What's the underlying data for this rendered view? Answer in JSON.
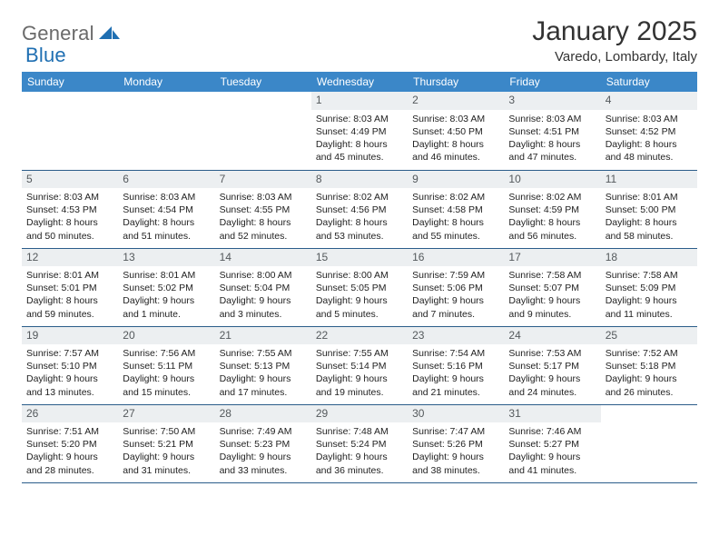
{
  "logo": {
    "primary": "General",
    "secondary": "Blue"
  },
  "colors": {
    "header_bg": "#3b87c8",
    "header_text": "#ffffff",
    "daynum_bg": "#eceff1",
    "daynum_text": "#54595c",
    "row_divider": "#2b5d8a",
    "brand_blue": "#1f6fb2",
    "brand_gray": "#6a6a6a"
  },
  "title": "January 2025",
  "subtitle": "Varedo, Lombardy, Italy",
  "weekdays": [
    "Sunday",
    "Monday",
    "Tuesday",
    "Wednesday",
    "Thursday",
    "Friday",
    "Saturday"
  ],
  "weeks": [
    [
      null,
      null,
      null,
      {
        "n": "1",
        "sr": "Sunrise: 8:03 AM",
        "ss": "Sunset: 4:49 PM",
        "d1": "Daylight: 8 hours",
        "d2": "and 45 minutes."
      },
      {
        "n": "2",
        "sr": "Sunrise: 8:03 AM",
        "ss": "Sunset: 4:50 PM",
        "d1": "Daylight: 8 hours",
        "d2": "and 46 minutes."
      },
      {
        "n": "3",
        "sr": "Sunrise: 8:03 AM",
        "ss": "Sunset: 4:51 PM",
        "d1": "Daylight: 8 hours",
        "d2": "and 47 minutes."
      },
      {
        "n": "4",
        "sr": "Sunrise: 8:03 AM",
        "ss": "Sunset: 4:52 PM",
        "d1": "Daylight: 8 hours",
        "d2": "and 48 minutes."
      }
    ],
    [
      {
        "n": "5",
        "sr": "Sunrise: 8:03 AM",
        "ss": "Sunset: 4:53 PM",
        "d1": "Daylight: 8 hours",
        "d2": "and 50 minutes."
      },
      {
        "n": "6",
        "sr": "Sunrise: 8:03 AM",
        "ss": "Sunset: 4:54 PM",
        "d1": "Daylight: 8 hours",
        "d2": "and 51 minutes."
      },
      {
        "n": "7",
        "sr": "Sunrise: 8:03 AM",
        "ss": "Sunset: 4:55 PM",
        "d1": "Daylight: 8 hours",
        "d2": "and 52 minutes."
      },
      {
        "n": "8",
        "sr": "Sunrise: 8:02 AM",
        "ss": "Sunset: 4:56 PM",
        "d1": "Daylight: 8 hours",
        "d2": "and 53 minutes."
      },
      {
        "n": "9",
        "sr": "Sunrise: 8:02 AM",
        "ss": "Sunset: 4:58 PM",
        "d1": "Daylight: 8 hours",
        "d2": "and 55 minutes."
      },
      {
        "n": "10",
        "sr": "Sunrise: 8:02 AM",
        "ss": "Sunset: 4:59 PM",
        "d1": "Daylight: 8 hours",
        "d2": "and 56 minutes."
      },
      {
        "n": "11",
        "sr": "Sunrise: 8:01 AM",
        "ss": "Sunset: 5:00 PM",
        "d1": "Daylight: 8 hours",
        "d2": "and 58 minutes."
      }
    ],
    [
      {
        "n": "12",
        "sr": "Sunrise: 8:01 AM",
        "ss": "Sunset: 5:01 PM",
        "d1": "Daylight: 8 hours",
        "d2": "and 59 minutes."
      },
      {
        "n": "13",
        "sr": "Sunrise: 8:01 AM",
        "ss": "Sunset: 5:02 PM",
        "d1": "Daylight: 9 hours",
        "d2": "and 1 minute."
      },
      {
        "n": "14",
        "sr": "Sunrise: 8:00 AM",
        "ss": "Sunset: 5:04 PM",
        "d1": "Daylight: 9 hours",
        "d2": "and 3 minutes."
      },
      {
        "n": "15",
        "sr": "Sunrise: 8:00 AM",
        "ss": "Sunset: 5:05 PM",
        "d1": "Daylight: 9 hours",
        "d2": "and 5 minutes."
      },
      {
        "n": "16",
        "sr": "Sunrise: 7:59 AM",
        "ss": "Sunset: 5:06 PM",
        "d1": "Daylight: 9 hours",
        "d2": "and 7 minutes."
      },
      {
        "n": "17",
        "sr": "Sunrise: 7:58 AM",
        "ss": "Sunset: 5:07 PM",
        "d1": "Daylight: 9 hours",
        "d2": "and 9 minutes."
      },
      {
        "n": "18",
        "sr": "Sunrise: 7:58 AM",
        "ss": "Sunset: 5:09 PM",
        "d1": "Daylight: 9 hours",
        "d2": "and 11 minutes."
      }
    ],
    [
      {
        "n": "19",
        "sr": "Sunrise: 7:57 AM",
        "ss": "Sunset: 5:10 PM",
        "d1": "Daylight: 9 hours",
        "d2": "and 13 minutes."
      },
      {
        "n": "20",
        "sr": "Sunrise: 7:56 AM",
        "ss": "Sunset: 5:11 PM",
        "d1": "Daylight: 9 hours",
        "d2": "and 15 minutes."
      },
      {
        "n": "21",
        "sr": "Sunrise: 7:55 AM",
        "ss": "Sunset: 5:13 PM",
        "d1": "Daylight: 9 hours",
        "d2": "and 17 minutes."
      },
      {
        "n": "22",
        "sr": "Sunrise: 7:55 AM",
        "ss": "Sunset: 5:14 PM",
        "d1": "Daylight: 9 hours",
        "d2": "and 19 minutes."
      },
      {
        "n": "23",
        "sr": "Sunrise: 7:54 AM",
        "ss": "Sunset: 5:16 PM",
        "d1": "Daylight: 9 hours",
        "d2": "and 21 minutes."
      },
      {
        "n": "24",
        "sr": "Sunrise: 7:53 AM",
        "ss": "Sunset: 5:17 PM",
        "d1": "Daylight: 9 hours",
        "d2": "and 24 minutes."
      },
      {
        "n": "25",
        "sr": "Sunrise: 7:52 AM",
        "ss": "Sunset: 5:18 PM",
        "d1": "Daylight: 9 hours",
        "d2": "and 26 minutes."
      }
    ],
    [
      {
        "n": "26",
        "sr": "Sunrise: 7:51 AM",
        "ss": "Sunset: 5:20 PM",
        "d1": "Daylight: 9 hours",
        "d2": "and 28 minutes."
      },
      {
        "n": "27",
        "sr": "Sunrise: 7:50 AM",
        "ss": "Sunset: 5:21 PM",
        "d1": "Daylight: 9 hours",
        "d2": "and 31 minutes."
      },
      {
        "n": "28",
        "sr": "Sunrise: 7:49 AM",
        "ss": "Sunset: 5:23 PM",
        "d1": "Daylight: 9 hours",
        "d2": "and 33 minutes."
      },
      {
        "n": "29",
        "sr": "Sunrise: 7:48 AM",
        "ss": "Sunset: 5:24 PM",
        "d1": "Daylight: 9 hours",
        "d2": "and 36 minutes."
      },
      {
        "n": "30",
        "sr": "Sunrise: 7:47 AM",
        "ss": "Sunset: 5:26 PM",
        "d1": "Daylight: 9 hours",
        "d2": "and 38 minutes."
      },
      {
        "n": "31",
        "sr": "Sunrise: 7:46 AM",
        "ss": "Sunset: 5:27 PM",
        "d1": "Daylight: 9 hours",
        "d2": "and 41 minutes."
      },
      null
    ]
  ]
}
